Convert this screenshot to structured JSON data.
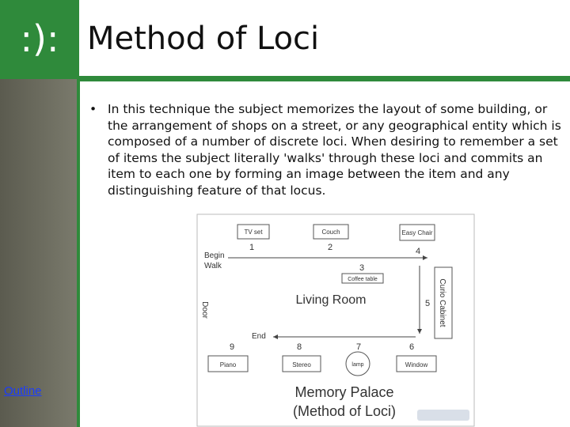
{
  "header": {
    "logo": ":):",
    "title": "Method of Loci"
  },
  "sidebar": {
    "link": "Outline"
  },
  "body": {
    "bullet": "In this technique the subject memorizes the layout of some building, or the arrangement of shops on a street, or any geographical entity which is composed of a number of discrete loci. When desiring to remember a set of items the subject literally 'walks' through these loci and commits an item to each one by forming an image between the item and any distinguishing feature of that locus."
  },
  "diagram": {
    "room": "Living Room",
    "begin": [
      "Begin",
      "Walk"
    ],
    "end": "End",
    "door": "Door",
    "items": [
      "TV set",
      "Couch",
      "Easy Chair",
      "Coffee table",
      "Curio Cabinet",
      "Window",
      "lamp",
      "Stereo",
      "Piano"
    ],
    "numbers": [
      "1",
      "2",
      "3",
      "4",
      "5",
      "6",
      "7",
      "8",
      "9"
    ],
    "caption": [
      "Memory Palace",
      "(Method of Loci)"
    ]
  }
}
